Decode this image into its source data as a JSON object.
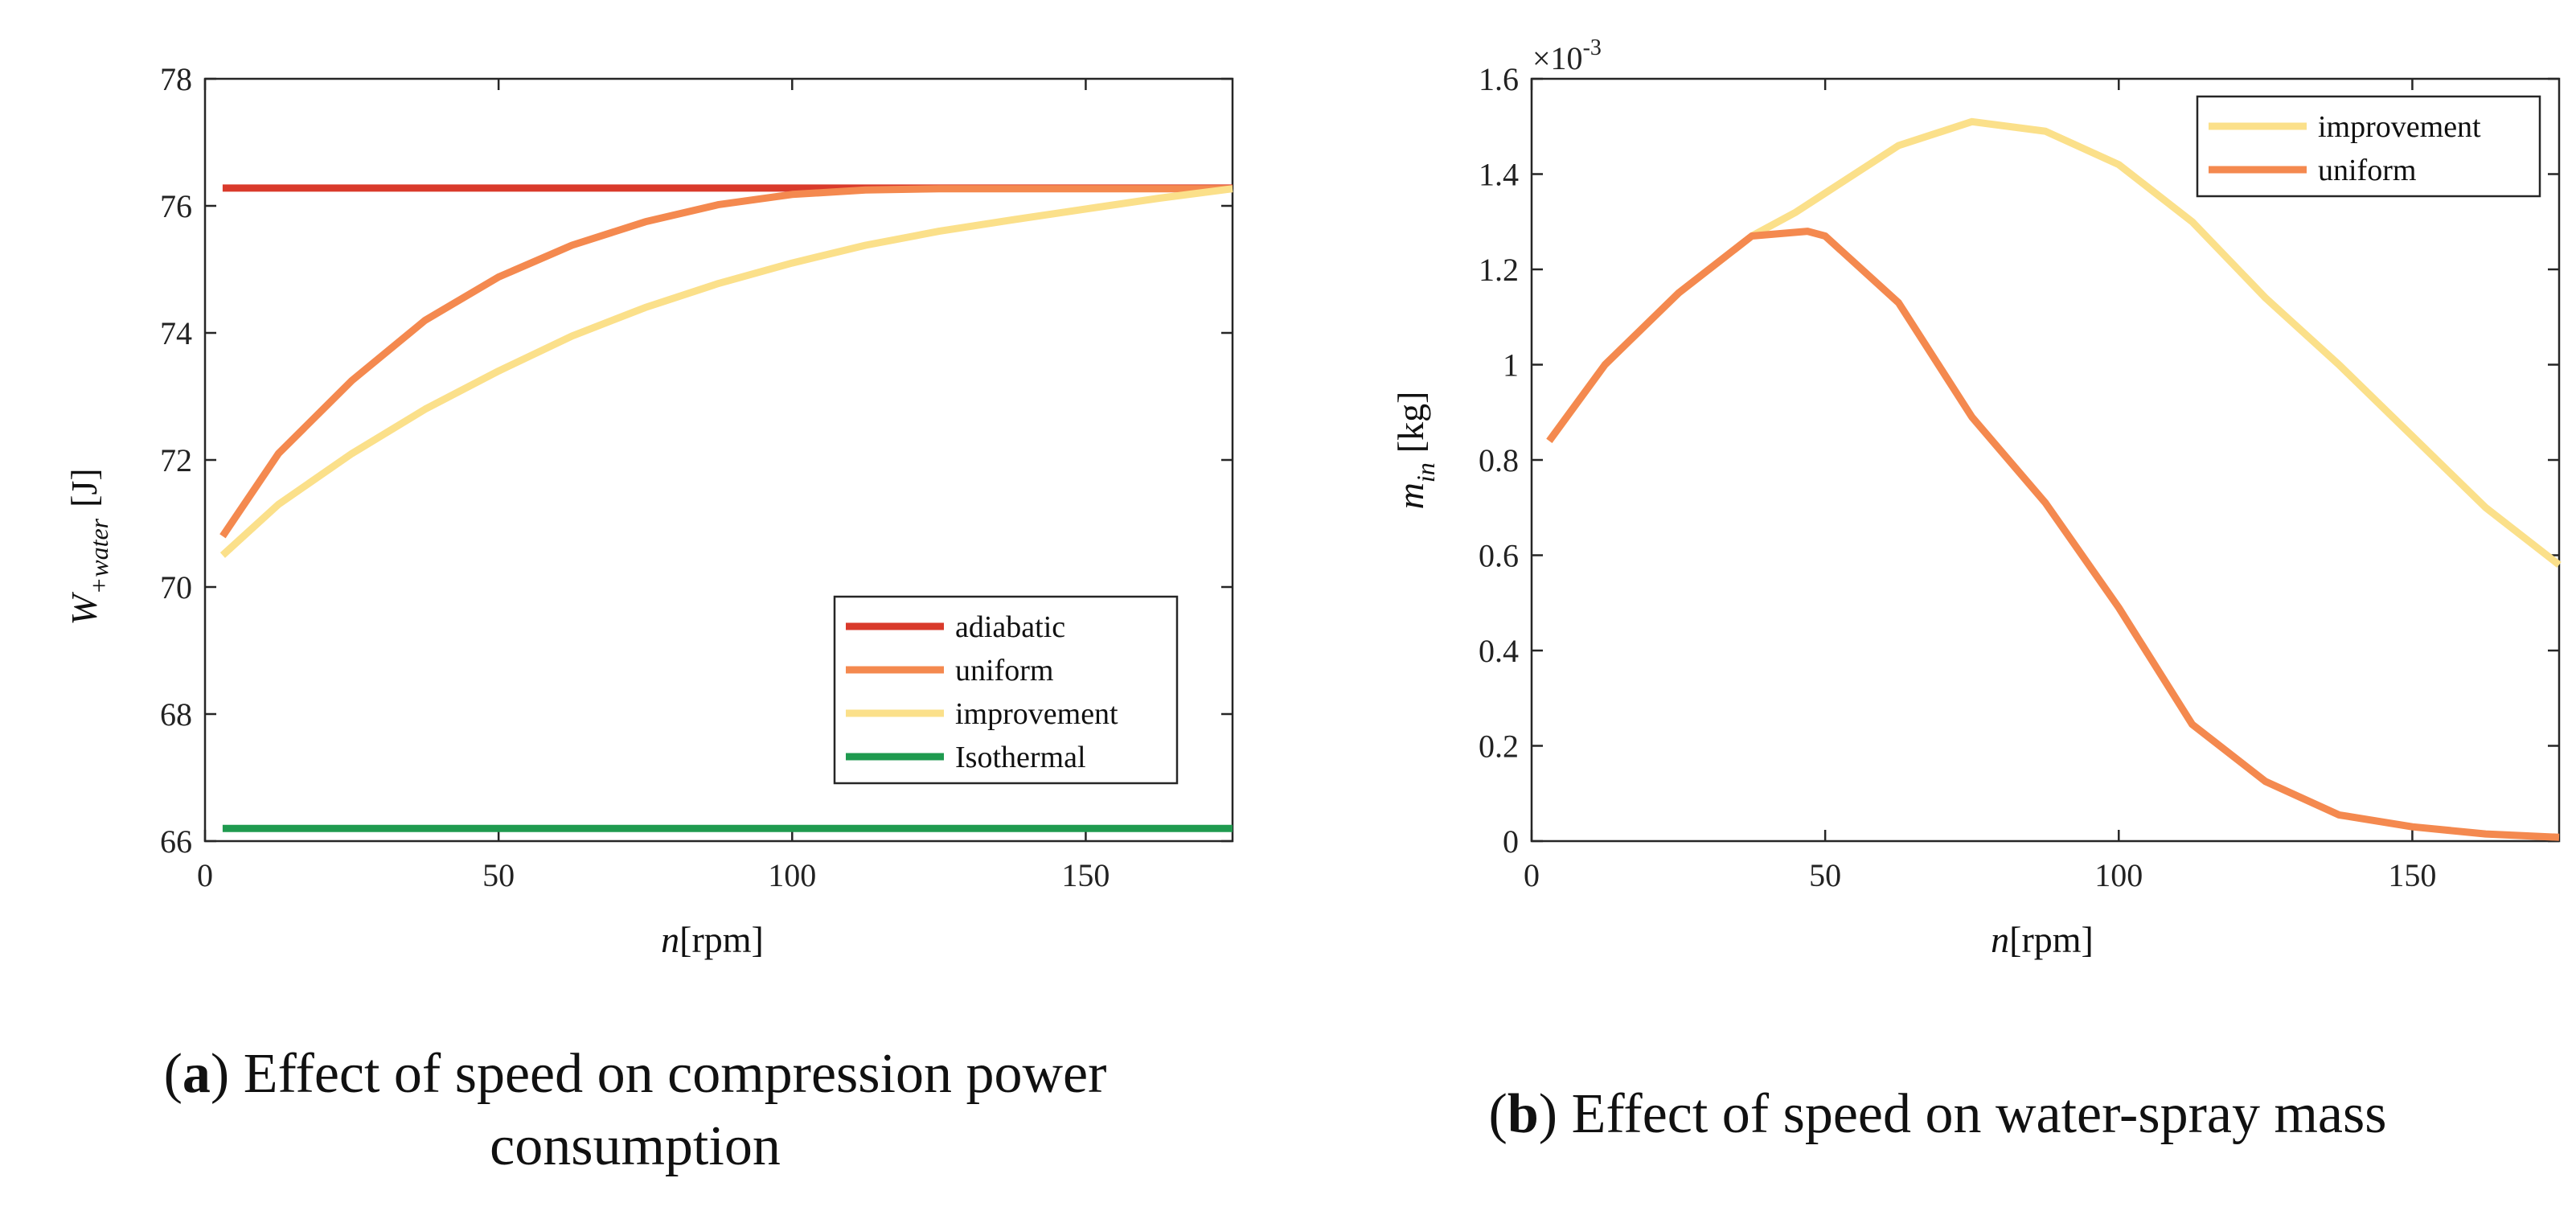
{
  "chart_data": [
    {
      "type": "line",
      "id": "a",
      "caption_label": "a",
      "caption_line1": "Effect of speed on compression power",
      "caption_line2": "consumption",
      "ylabel_main": "W",
      "ylabel_sub": "+water",
      "ylabel_unit": "[J]",
      "xlabel_var": "n",
      "xlabel_unit": "[rpm]",
      "xlim": [
        0,
        175
      ],
      "ylim": [
        66,
        78
      ],
      "xticks": [
        0,
        50,
        100,
        150
      ],
      "yticks": [
        66,
        68,
        70,
        72,
        74,
        76,
        78
      ],
      "legend_position": "bottom-right",
      "series": [
        {
          "name": "adiabatic",
          "color": "#d93a2b",
          "x": [
            3,
            175
          ],
          "y": [
            76.28,
            76.28
          ]
        },
        {
          "name": "uniform",
          "color": "#f4894f",
          "x": [
            3,
            12.5,
            25,
            37.5,
            50,
            62.5,
            75,
            87.5,
            100,
            112.5,
            125,
            150,
            175
          ],
          "y": [
            70.8,
            72.1,
            73.25,
            74.2,
            74.88,
            75.38,
            75.75,
            76.02,
            76.18,
            76.25,
            76.27,
            76.27,
            76.27
          ]
        },
        {
          "name": "improvement",
          "color": "#fbe08a",
          "x": [
            3,
            12.5,
            25,
            37.5,
            50,
            62.5,
            75,
            87.5,
            100,
            112.5,
            125,
            137.5,
            150,
            162.5,
            175
          ],
          "y": [
            70.5,
            71.3,
            72.1,
            72.8,
            73.4,
            73.95,
            74.4,
            74.78,
            75.1,
            75.38,
            75.6,
            75.78,
            75.95,
            76.12,
            76.27
          ]
        },
        {
          "name": "Isothermal",
          "color": "#1f9a4f",
          "x": [
            3,
            175
          ],
          "y": [
            66.2,
            66.2
          ]
        }
      ]
    },
    {
      "type": "line",
      "id": "b",
      "caption_label": "b",
      "caption_line1": "Effect of speed on water-spray mass",
      "ylabel_main": "m",
      "ylabel_sub": "in",
      "ylabel_unit": "[kg]",
      "xlabel_var": "n",
      "xlabel_unit": "[rpm]",
      "exponent_base": "×10",
      "exponent_power": "-3",
      "xlim": [
        0,
        175
      ],
      "ylim": [
        0,
        1.6
      ],
      "xticks": [
        0,
        50,
        100,
        150
      ],
      "yticks": [
        0,
        0.2,
        0.4,
        0.6,
        0.8,
        1,
        1.2,
        1.4,
        1.6
      ],
      "legend_position": "top-right",
      "series": [
        {
          "name": "improvement",
          "color": "#fbe08a",
          "x": [
            3,
            12.5,
            25,
            37.5,
            45,
            50,
            62.5,
            75,
            87.5,
            100,
            112.5,
            125,
            137.5,
            150,
            162.5,
            175
          ],
          "y": [
            0.84,
            1.0,
            1.15,
            1.27,
            1.32,
            1.36,
            1.46,
            1.51,
            1.49,
            1.42,
            1.3,
            1.14,
            1.0,
            0.85,
            0.7,
            0.58
          ]
        },
        {
          "name": "uniform",
          "color": "#f4894f",
          "x": [
            3,
            12.5,
            25,
            37.5,
            47,
            50,
            62.5,
            75,
            87.5,
            100,
            112.5,
            125,
            137.5,
            150,
            162.5,
            175
          ],
          "y": [
            0.84,
            1.0,
            1.15,
            1.27,
            1.28,
            1.27,
            1.13,
            0.89,
            0.71,
            0.49,
            0.245,
            0.125,
            0.055,
            0.03,
            0.015,
            0.008
          ]
        }
      ]
    }
  ]
}
